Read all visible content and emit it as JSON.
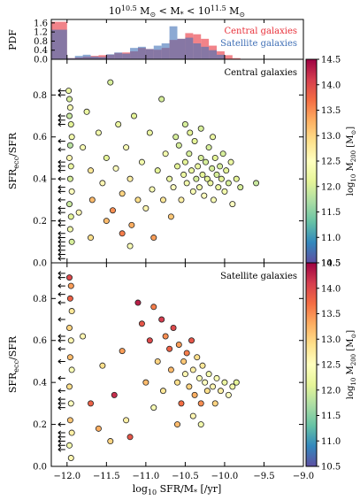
{
  "title": "10^10.5 M⊙ < M* < 10^11.5 M⊙",
  "title_parts": {
    "a": "10",
    "a_sup": "10.5",
    "b": " M",
    "b_sub": "⊙",
    "c": " < M",
    "c_sub": "*",
    "d": " < 10",
    "d_sup": "11.5",
    "e": " M",
    "e_sub": "⊙"
  },
  "x_axis": {
    "label": "log₁₀ SFR/M* [/yr]",
    "label_parts": {
      "a": "log",
      "a_sub": "10",
      "b": " SFR/M",
      "b_sub": "*",
      "c": " [/yr]"
    },
    "range": [
      -12.2,
      -9.0
    ],
    "ticks": [
      "−12.0",
      "−11.5",
      "−11.0",
      "−10.5",
      "−10.0",
      "−9.5",
      "−9.0"
    ],
    "tick_values": [
      -12.0,
      -11.5,
      -11.0,
      -10.5,
      -10.0,
      -9.5,
      -9.0
    ]
  },
  "colorbar": {
    "label": "log₁₀ M200 [M⊙]",
    "range": [
      10.5,
      14.5
    ],
    "ticks": [
      "10.5",
      "11.0",
      "11.5",
      "12.0",
      "12.5",
      "13.0",
      "13.5",
      "14.0",
      "14.5"
    ],
    "colormap": [
      "#5e4fa2",
      "#3288bd",
      "#66c2a5",
      "#abdda4",
      "#e6f598",
      "#ffffbf",
      "#fee08b",
      "#fdae61",
      "#f46d43",
      "#d53e4f",
      "#9e0142"
    ]
  },
  "chart_data": [
    {
      "type": "bar",
      "panel": "histogram",
      "ylabel": "PDF",
      "ylim": [
        0,
        1.75
      ],
      "yticks": [
        "0.0",
        "0.4",
        "0.8",
        "1.2",
        "1.6"
      ],
      "x_bin_edges": [
        -12.2,
        -12.0,
        -11.9,
        -11.8,
        -11.7,
        -11.6,
        -11.5,
        -11.4,
        -11.3,
        -11.2,
        -11.1,
        -11.0,
        -10.9,
        -10.8,
        -10.7,
        -10.6,
        -10.5,
        -10.4,
        -10.3,
        -10.2,
        -10.1,
        -10.0,
        -9.9,
        -9.8
      ],
      "series": [
        {
          "name": "Central galaxies",
          "color": "#e8303a",
          "values": [
            1.65,
            0.05,
            0.08,
            0.12,
            0.15,
            0.18,
            0.2,
            0.28,
            0.3,
            0.35,
            0.5,
            0.45,
            0.42,
            0.5,
            0.85,
            0.9,
            1.15,
            1.1,
            0.9,
            0.6,
            0.35,
            0.18,
            0.05
          ]
        },
        {
          "name": "Satellite galaxies",
          "color": "#3f6fb6",
          "values": [
            1.3,
            0.05,
            0.15,
            0.2,
            0.12,
            0.1,
            0.22,
            0.3,
            0.25,
            0.5,
            0.55,
            0.45,
            0.6,
            0.7,
            1.45,
            0.9,
            0.95,
            0.7,
            0.55,
            0.4,
            0.2,
            0.0,
            0.0
          ]
        }
      ],
      "legend_placement": "top-right"
    },
    {
      "type": "scatter",
      "panel": "central",
      "annotation": "Central galaxies",
      "ylabel": "SFRecc/SFR",
      "ylabel_parts": {
        "a": "SFR",
        "a_sub": "ecc",
        "b": "/SFR"
      },
      "xlim": [
        -12.2,
        -9.0
      ],
      "ylim": [
        0.0,
        0.97
      ],
      "yticks": [
        "0.0",
        "0.2",
        "0.4",
        "0.6",
        "0.8"
      ],
      "ytick_values": [
        0.0,
        0.2,
        0.4,
        0.6,
        0.8
      ],
      "upper_limits_x": -12.0,
      "upper_limit_y": [
        0.82,
        0.8,
        0.7,
        0.68,
        0.66,
        0.58,
        0.54,
        0.48,
        0.46,
        0.44,
        0.4,
        0.36,
        0.34,
        0.3,
        0.26,
        0.24,
        0.2,
        0.18,
        0.14,
        0.12,
        0.1,
        0.08,
        0.06,
        0.04,
        0.02
      ],
      "points": [
        [
          -11.98,
          0.82,
          12.2
        ],
        [
          -11.97,
          0.78,
          12.0
        ],
        [
          -11.96,
          0.74,
          12.4
        ],
        [
          -11.97,
          0.7,
          11.9
        ],
        [
          -11.95,
          0.66,
          12.1
        ],
        [
          -11.94,
          0.6,
          12.3
        ],
        [
          -11.96,
          0.56,
          11.8
        ],
        [
          -11.97,
          0.5,
          12.6
        ],
        [
          -11.95,
          0.46,
          12.2
        ],
        [
          -11.96,
          0.4,
          12.0
        ],
        [
          -11.94,
          0.34,
          12.5
        ],
        [
          -11.97,
          0.28,
          11.9
        ],
        [
          -11.95,
          0.22,
          12.1
        ],
        [
          -11.96,
          0.16,
          12.3
        ],
        [
          -11.94,
          0.1,
          12.0
        ],
        [
          -11.8,
          0.55,
          12.4
        ],
        [
          -11.75,
          0.72,
          12.2
        ],
        [
          -11.7,
          0.44,
          12.8
        ],
        [
          -11.68,
          0.3,
          13.2
        ],
        [
          -11.6,
          0.62,
          12.3
        ],
        [
          -11.55,
          0.38,
          12.6
        ],
        [
          -11.5,
          0.5,
          12.1
        ],
        [
          -11.45,
          0.86,
          12.0
        ],
        [
          -11.42,
          0.25,
          13.5
        ],
        [
          -11.38,
          0.45,
          12.5
        ],
        [
          -11.35,
          0.66,
          12.2
        ],
        [
          -11.3,
          0.33,
          13.0
        ],
        [
          -11.25,
          0.55,
          12.4
        ],
        [
          -11.2,
          0.4,
          12.7
        ],
        [
          -11.18,
          0.18,
          13.3
        ],
        [
          -11.15,
          0.7,
          12.1
        ],
        [
          -11.1,
          0.3,
          12.9
        ],
        [
          -11.05,
          0.48,
          12.3
        ],
        [
          -11.0,
          0.26,
          12.6
        ],
        [
          -10.95,
          0.62,
          12.2
        ],
        [
          -10.92,
          0.35,
          12.4
        ],
        [
          -10.9,
          0.12,
          13.4
        ],
        [
          -10.85,
          0.44,
          12.1
        ],
        [
          -10.8,
          0.78,
          12.0
        ],
        [
          -10.78,
          0.3,
          12.8
        ],
        [
          -10.75,
          0.52,
          12.3
        ],
        [
          -10.7,
          0.4,
          12.2
        ],
        [
          -10.68,
          0.22,
          13.1
        ],
        [
          -10.65,
          0.36,
          12.5
        ],
        [
          -10.6,
          0.46,
          12.1
        ],
        [
          -10.58,
          0.56,
          12.0
        ],
        [
          -10.55,
          0.3,
          12.7
        ],
        [
          -10.52,
          0.42,
          12.2
        ],
        [
          -10.5,
          0.48,
          12.1
        ],
        [
          -10.48,
          0.38,
          12.3
        ],
        [
          -10.45,
          0.52,
          12.0
        ],
        [
          -10.42,
          0.44,
          12.2
        ],
        [
          -10.4,
          0.34,
          12.4
        ],
        [
          -10.38,
          0.58,
          12.1
        ],
        [
          -10.36,
          0.4,
          12.0
        ],
        [
          -10.34,
          0.46,
          12.2
        ],
        [
          -10.32,
          0.36,
          12.3
        ],
        [
          -10.3,
          0.5,
          12.0
        ],
        [
          -10.28,
          0.42,
          12.1
        ],
        [
          -10.26,
          0.32,
          12.5
        ],
        [
          -10.24,
          0.48,
          12.0
        ],
        [
          -10.22,
          0.4,
          12.1
        ],
        [
          -10.2,
          0.55,
          12.0
        ],
        [
          -10.18,
          0.38,
          12.2
        ],
        [
          -10.16,
          0.45,
          12.0
        ],
        [
          -10.14,
          0.3,
          12.4
        ],
        [
          -10.12,
          0.5,
          12.1
        ],
        [
          -10.1,
          0.42,
          12.0
        ],
        [
          -10.08,
          0.36,
          12.2
        ],
        [
          -10.06,
          0.46,
          12.0
        ],
        [
          -10.04,
          0.4,
          12.1
        ],
        [
          -10.02,
          0.52,
          12.0
        ],
        [
          -10.0,
          0.34,
          12.3
        ],
        [
          -9.98,
          0.44,
          12.1
        ],
        [
          -9.95,
          0.38,
          12.0
        ],
        [
          -9.92,
          0.48,
          12.2
        ],
        [
          -9.9,
          0.28,
          12.5
        ],
        [
          -9.85,
          0.4,
          12.1
        ],
        [
          -9.8,
          0.36,
          12.0
        ],
        [
          -9.6,
          0.38,
          11.9
        ],
        [
          -10.62,
          0.6,
          12.0
        ],
        [
          -10.44,
          0.62,
          12.1
        ],
        [
          -10.3,
          0.64,
          12.0
        ],
        [
          -10.15,
          0.6,
          12.2
        ],
        [
          -10.5,
          0.66,
          12.0
        ],
        [
          -11.3,
          0.14,
          13.6
        ],
        [
          -11.5,
          0.2,
          13.2
        ],
        [
          -11.7,
          0.12,
          12.9
        ],
        [
          -11.85,
          0.24,
          12.6
        ],
        [
          -11.2,
          0.08,
          12.4
        ]
      ]
    },
    {
      "type": "scatter",
      "panel": "satellite",
      "annotation": "Satellite galaxies",
      "ylabel": "SFRecc/SFR",
      "ylabel_parts": {
        "a": "SFR",
        "a_sub": "ecc",
        "b": "/SFR"
      },
      "xlim": [
        -12.2,
        -9.0
      ],
      "ylim": [
        0.0,
        0.97
      ],
      "yticks": [
        "0.0",
        "0.2",
        "0.4",
        "0.6",
        "0.8"
      ],
      "ytick_values": [
        0.0,
        0.2,
        0.4,
        0.6,
        0.8
      ],
      "upper_limits_x": -12.0,
      "upper_limit_y": [
        0.92,
        0.9,
        0.86,
        0.82,
        0.78,
        0.7,
        0.62,
        0.6,
        0.56,
        0.5,
        0.42,
        0.36,
        0.32,
        0.3,
        0.28,
        0.2,
        0.16,
        0.14,
        0.12,
        0.1,
        0.08
      ],
      "points": [
        [
          -11.97,
          0.9,
          14.0
        ],
        [
          -11.95,
          0.86,
          13.4
        ],
        [
          -11.96,
          0.8,
          13.8
        ],
        [
          -11.94,
          0.74,
          12.8
        ],
        [
          -11.97,
          0.66,
          13.0
        ],
        [
          -11.95,
          0.6,
          12.6
        ],
        [
          -11.96,
          0.52,
          13.2
        ],
        [
          -11.94,
          0.46,
          12.4
        ],
        [
          -11.97,
          0.38,
          12.9
        ],
        [
          -11.95,
          0.3,
          12.5
        ],
        [
          -11.96,
          0.22,
          13.1
        ],
        [
          -11.94,
          0.16,
          12.7
        ],
        [
          -11.97,
          0.1,
          12.3
        ],
        [
          -11.95,
          0.04,
          12.6
        ],
        [
          -11.8,
          0.62,
          12.6
        ],
        [
          -11.7,
          0.3,
          13.8
        ],
        [
          -11.55,
          0.48,
          12.9
        ],
        [
          -11.4,
          0.34,
          14.2
        ],
        [
          -11.3,
          0.55,
          13.4
        ],
        [
          -11.2,
          0.14,
          13.9
        ],
        [
          -11.1,
          0.78,
          14.3
        ],
        [
          -11.05,
          0.68,
          13.9
        ],
        [
          -11.0,
          0.4,
          13.2
        ],
        [
          -10.95,
          0.6,
          14.0
        ],
        [
          -10.9,
          0.76,
          13.6
        ],
        [
          -10.85,
          0.5,
          13.0
        ],
        [
          -10.8,
          0.7,
          14.1
        ],
        [
          -10.78,
          0.36,
          12.8
        ],
        [
          -10.75,
          0.62,
          13.5
        ],
        [
          -10.7,
          0.56,
          13.8
        ],
        [
          -10.68,
          0.46,
          13.2
        ],
        [
          -10.65,
          0.66,
          14.0
        ],
        [
          -10.6,
          0.4,
          12.9
        ],
        [
          -10.58,
          0.58,
          13.4
        ],
        [
          -10.55,
          0.3,
          13.7
        ],
        [
          -10.52,
          0.5,
          13.1
        ],
        [
          -10.5,
          0.44,
          12.6
        ],
        [
          -10.48,
          0.54,
          13.6
        ],
        [
          -10.45,
          0.38,
          13.0
        ],
        [
          -10.42,
          0.6,
          13.9
        ],
        [
          -10.4,
          0.46,
          12.7
        ],
        [
          -10.38,
          0.34,
          13.3
        ],
        [
          -10.35,
          0.52,
          12.9
        ],
        [
          -10.32,
          0.42,
          12.4
        ],
        [
          -10.3,
          0.3,
          13.5
        ],
        [
          -10.28,
          0.48,
          12.8
        ],
        [
          -10.25,
          0.4,
          12.5
        ],
        [
          -10.22,
          0.36,
          12.9
        ],
        [
          -10.2,
          0.44,
          12.3
        ],
        [
          -10.15,
          0.38,
          12.6
        ],
        [
          -10.12,
          0.3,
          13.0
        ],
        [
          -10.1,
          0.42,
          12.4
        ],
        [
          -10.05,
          0.36,
          12.7
        ],
        [
          -10.0,
          0.4,
          12.2
        ],
        [
          -9.95,
          0.34,
          12.5
        ],
        [
          -9.9,
          0.38,
          12.3
        ],
        [
          -9.85,
          0.4,
          12.1
        ],
        [
          -10.6,
          0.2,
          13.2
        ],
        [
          -10.4,
          0.24,
          12.6
        ],
        [
          -10.3,
          0.2,
          12.3
        ],
        [
          -11.6,
          0.18,
          13.3
        ],
        [
          -11.25,
          0.22,
          12.7
        ],
        [
          -10.9,
          0.28,
          12.4
        ],
        [
          -11.45,
          0.12,
          13.0
        ]
      ]
    }
  ]
}
